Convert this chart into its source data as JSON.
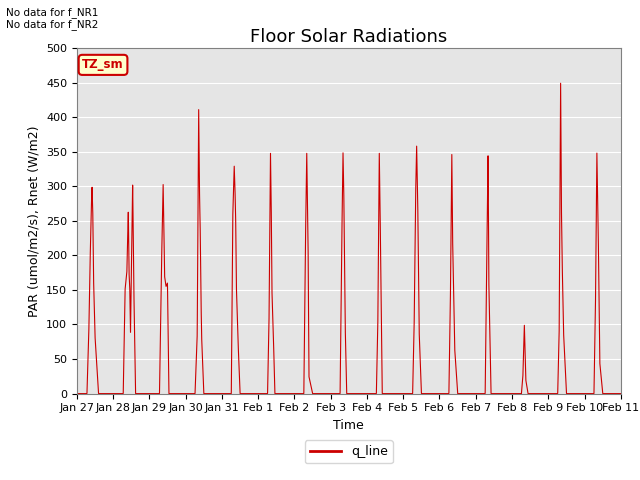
{
  "title": "Floor Solar Radiations",
  "xlabel": "Time",
  "ylabel": "PAR (umol/m2/s), Rnet (W/m2)",
  "ylim": [
    0,
    500
  ],
  "yticks": [
    0,
    50,
    100,
    150,
    200,
    250,
    300,
    350,
    400,
    450,
    500
  ],
  "xtick_labels": [
    "Jan 27",
    "Jan 28",
    "Jan 29",
    "Jan 30",
    "Jan 31",
    "Feb 1",
    "Feb 2",
    "Feb 3",
    "Feb 4",
    "Feb 5",
    "Feb 6",
    "Feb 7",
    "Feb 8",
    "Feb 9",
    "Feb 10",
    "Feb 11"
  ],
  "text_no_data1": "No data for f_NR1",
  "text_no_data2": "No data for f_NR2",
  "legend_label": "q_line",
  "legend_color": "#cc0000",
  "line_color": "#cc0000",
  "bg_color": "#e5e5e5",
  "tz_label": "TZ_sm",
  "tz_bg": "#ffffcc",
  "tz_border": "#cc0000",
  "title_fontsize": 13,
  "axis_label_fontsize": 9,
  "tick_fontsize": 8,
  "signal_segments": [
    [
      0.0,
      0,
      0.28,
      0,
      0.33,
      85,
      0.36,
      175,
      0.4,
      270,
      0.42,
      300,
      0.44,
      265,
      0.46,
      170,
      0.5,
      85,
      0.54,
      50,
      0.6,
      0,
      1.0,
      0
    ],
    [
      1.0,
      0,
      1.28,
      0,
      1.33,
      150,
      1.38,
      175,
      1.42,
      265,
      1.44,
      175,
      1.46,
      155,
      1.48,
      85,
      1.5,
      160,
      1.54,
      305,
      1.57,
      160,
      1.62,
      0,
      2.0,
      0
    ],
    [
      2.0,
      0,
      2.28,
      0,
      2.33,
      170,
      2.38,
      305,
      2.42,
      170,
      2.46,
      155,
      2.5,
      160,
      2.54,
      0,
      3.0,
      0
    ],
    [
      3.0,
      0,
      3.26,
      0,
      3.32,
      85,
      3.36,
      415,
      3.38,
      300,
      3.4,
      250,
      3.42,
      155,
      3.44,
      85,
      3.5,
      0,
      4.0,
      0
    ],
    [
      4.0,
      0,
      4.26,
      0,
      4.3,
      255,
      4.34,
      330,
      4.36,
      300,
      4.38,
      255,
      4.4,
      155,
      4.44,
      85,
      4.5,
      0,
      5.0,
      0
    ],
    [
      5.0,
      0,
      5.26,
      0,
      5.3,
      105,
      5.34,
      350,
      5.36,
      280,
      5.38,
      150,
      5.42,
      85,
      5.46,
      0,
      6.0,
      0
    ],
    [
      6.0,
      0,
      6.26,
      0,
      6.3,
      200,
      6.34,
      350,
      6.36,
      280,
      6.38,
      200,
      6.4,
      25,
      6.5,
      0,
      7.0,
      0
    ],
    [
      7.0,
      0,
      7.26,
      0,
      7.3,
      195,
      7.34,
      350,
      7.36,
      300,
      7.38,
      200,
      7.4,
      100,
      7.44,
      0,
      8.0,
      0
    ],
    [
      8.0,
      0,
      8.26,
      0,
      8.3,
      100,
      8.34,
      350,
      8.36,
      280,
      8.42,
      0,
      9.0,
      0
    ],
    [
      9.0,
      0,
      9.26,
      0,
      9.3,
      90,
      9.34,
      280,
      9.37,
      360,
      9.4,
      280,
      9.44,
      90,
      9.5,
      0,
      10.0,
      0
    ],
    [
      10.0,
      0,
      10.26,
      0,
      10.3,
      130,
      10.34,
      350,
      10.36,
      230,
      10.42,
      65,
      10.5,
      0,
      11.0,
      0
    ],
    [
      11.0,
      0,
      11.26,
      0,
      11.3,
      170,
      11.34,
      350,
      11.36,
      165,
      11.42,
      0,
      12.0,
      0
    ],
    [
      12.0,
      0,
      12.26,
      0,
      12.3,
      25,
      12.34,
      100,
      12.36,
      65,
      12.38,
      20,
      12.44,
      0,
      13.0,
      0
    ],
    [
      13.0,
      0,
      13.26,
      0,
      13.3,
      85,
      13.34,
      455,
      13.36,
      280,
      13.38,
      200,
      13.42,
      90,
      13.5,
      0,
      14.0,
      0
    ],
    [
      14.0,
      0,
      14.26,
      0,
      14.3,
      120,
      14.34,
      350,
      14.36,
      290,
      14.38,
      225,
      14.42,
      45,
      14.5,
      0,
      15.0,
      0
    ]
  ]
}
